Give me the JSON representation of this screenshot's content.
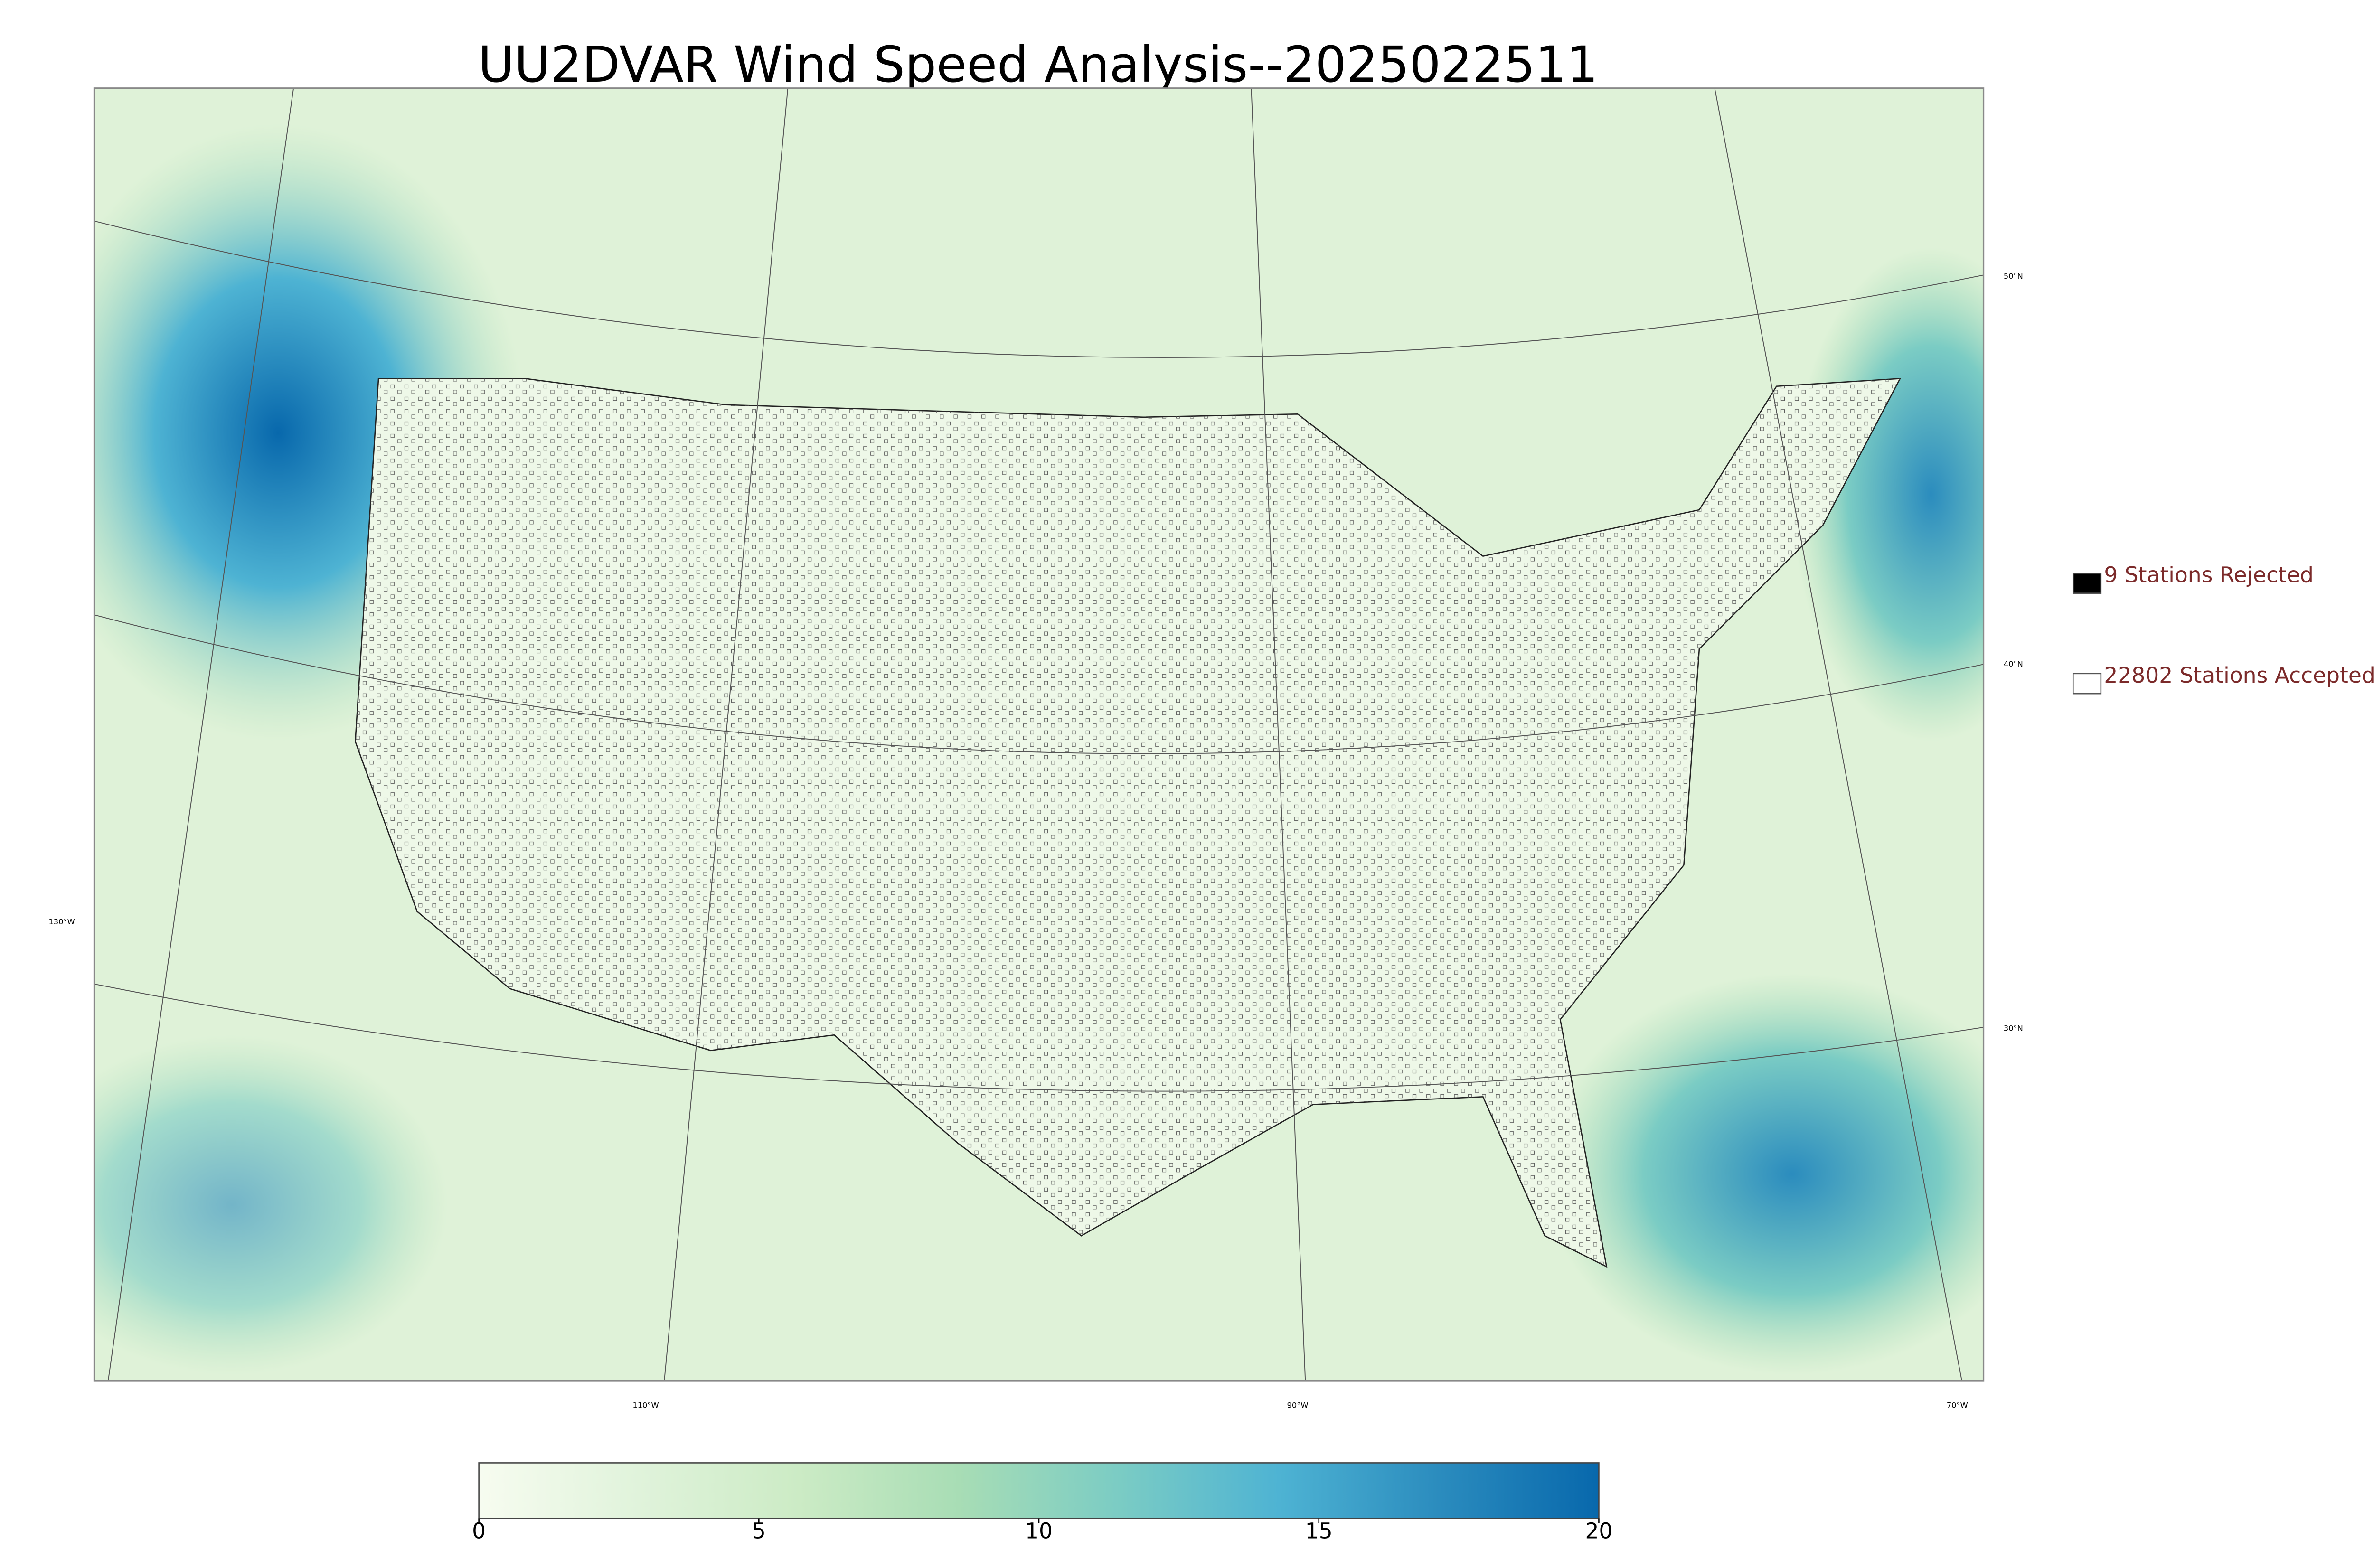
{
  "title": "UU2DVAR Wind Speed Analysis--2025022511",
  "map": {
    "lat_labels": [
      "50°N",
      "40°N",
      "30°N"
    ],
    "lon_labels": [
      "130°W",
      "110°W",
      "90°W",
      "70°W"
    ]
  },
  "legend": [
    {
      "label": "9 Stations Rejected",
      "color": "#000000"
    },
    {
      "label": "22802 Stations Accepted",
      "color": "#ffffff"
    }
  ],
  "colorbar": {
    "lim": [
      0,
      20
    ],
    "ticks": [
      0,
      5,
      10,
      15,
      20
    ],
    "colors": [
      "#f7fcf0",
      "#e0f3db",
      "#ccebc5",
      "#a8ddb5",
      "#7bccc4",
      "#4eb3d3",
      "#2b8cbe",
      "#0868ac"
    ]
  }
}
